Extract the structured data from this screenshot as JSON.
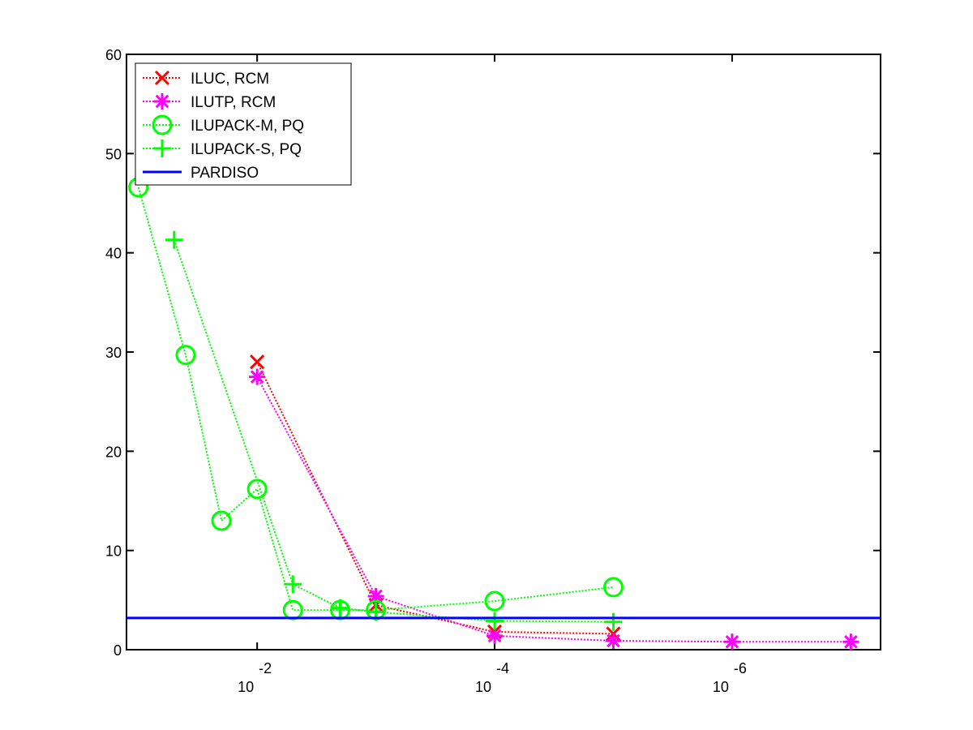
{
  "chart_data": {
    "type": "line",
    "title": "",
    "xlabel": "",
    "ylabel": "",
    "x_scale": "log",
    "x_direction": "reversed",
    "xlim": [
      0.126,
      5.62e-08
    ],
    "ylim": [
      0,
      60
    ],
    "grid": false,
    "legend_position": "top-left",
    "yticks": [
      0,
      10,
      20,
      30,
      40,
      50,
      60
    ],
    "ytick_labels": [
      "0",
      "10",
      "20",
      "30",
      "40",
      "50",
      "60"
    ],
    "xticks": [
      {
        "value": 0.01,
        "base": "10",
        "exp": "-2"
      },
      {
        "value": 0.0001,
        "base": "10",
        "exp": "-4"
      },
      {
        "value": 1e-06,
        "base": "10",
        "exp": "-6"
      }
    ],
    "series": [
      {
        "name": "ILUC, RCM",
        "color": "#ff0000",
        "marker": "x",
        "line": "dotted",
        "x": [
          0.01,
          0.001,
          0.0001,
          1e-05
        ],
        "y": [
          29.0,
          4.5,
          1.8,
          1.6
        ]
      },
      {
        "name": "ILUTP, RCM",
        "color": "#ff00ff",
        "marker": "star",
        "line": "dotted",
        "x": [
          0.01,
          0.001,
          0.0001,
          1e-05,
          1e-06,
          1e-07
        ],
        "y": [
          27.5,
          5.4,
          1.4,
          0.9,
          0.8,
          0.8
        ]
      },
      {
        "name": "ILUPACK-M, PQ",
        "color": "#00ff00",
        "marker": "circle",
        "line": "dotted",
        "x": [
          0.1,
          0.04,
          0.02,
          0.01,
          0.005,
          0.002,
          0.001,
          0.0001,
          1e-05
        ],
        "y": [
          46.6,
          29.7,
          13.0,
          16.2,
          4.0,
          4.0,
          4.0,
          4.9,
          6.3
        ]
      },
      {
        "name": "ILUPACK-S, PQ",
        "color": "#00ff00",
        "marker": "plus",
        "line": "dotted",
        "x": [
          0.05,
          0.005,
          0.002,
          0.001,
          0.0001,
          1e-05
        ],
        "y": [
          41.3,
          6.6,
          4.2,
          3.8,
          2.9,
          2.8
        ]
      },
      {
        "name": "PARDISO",
        "color": "#0000ff",
        "marker": "none",
        "line": "solid",
        "x": [
          0.126,
          5.62e-08
        ],
        "y": [
          3.2,
          3.2
        ]
      }
    ]
  }
}
